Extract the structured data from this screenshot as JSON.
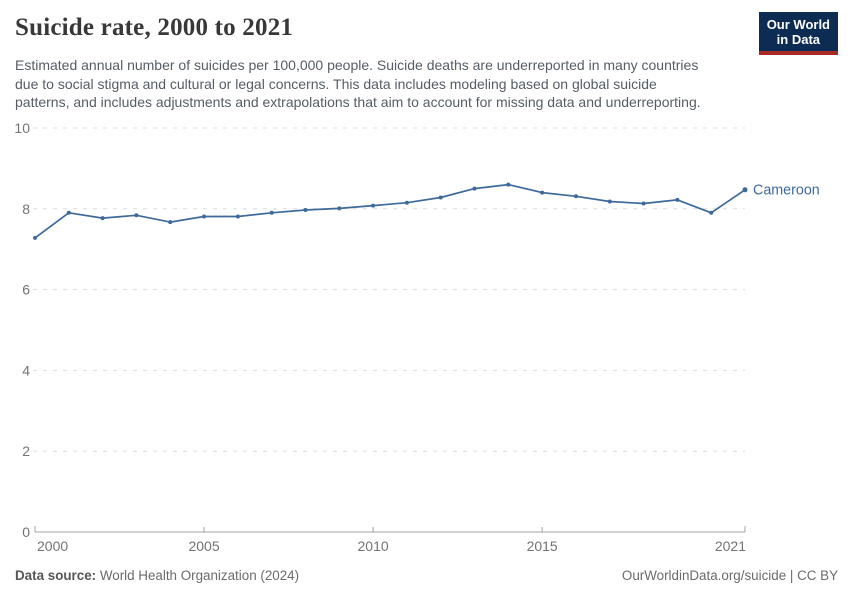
{
  "header": {
    "title": "Suicide rate, 2000 to 2021",
    "subtitle_lines": [
      "Estimated annual number of suicides per 100,000 people. Suicide deaths are underreported in many countries",
      "due to social stigma and cultural or legal concerns. This data includes modeling based on global suicide",
      "patterns, and includes adjustments and extrapolations that aim to account for missing data and underreporting."
    ],
    "logo": {
      "line1": "Our World",
      "line2": "in Data"
    }
  },
  "chart_data": {
    "type": "line",
    "title": "Suicide rate, 2000 to 2021",
    "xlabel": "",
    "ylabel": "",
    "xlim": [
      2000,
      2021
    ],
    "ylim": [
      0,
      10
    ],
    "x_ticks": [
      2000,
      2005,
      2010,
      2015,
      2021
    ],
    "x_tick_labels": [
      "2000",
      "2005",
      "2010",
      "2015",
      "2021"
    ],
    "y_ticks": [
      0,
      2,
      4,
      6,
      8,
      10
    ],
    "y_tick_labels": [
      "0",
      "2",
      "4",
      "6",
      "8",
      "10"
    ],
    "grid": "horizontal-dashed",
    "legend_position": "end-of-line-label",
    "markers": true,
    "x": [
      2000,
      2001,
      2002,
      2003,
      2004,
      2005,
      2006,
      2007,
      2008,
      2009,
      2010,
      2011,
      2012,
      2013,
      2014,
      2015,
      2016,
      2017,
      2018,
      2019,
      2020,
      2021
    ],
    "series": [
      {
        "name": "Cameroon",
        "color": "#3d6a9c",
        "values": [
          7.28,
          7.9,
          7.77,
          7.84,
          7.67,
          7.81,
          7.81,
          7.9,
          7.97,
          8.01,
          8.08,
          8.15,
          8.28,
          8.5,
          8.6,
          8.4,
          8.31,
          8.18,
          8.13,
          8.22,
          7.9,
          8.47
        ]
      }
    ]
  },
  "colors": {
    "line": "#3d6a9c",
    "grid": "#dcdcdc",
    "axis": "#a3a3a3",
    "tick_label": "#737373",
    "title": "#383838",
    "subtitle": "#555d66",
    "logo_bg": "#0d2c54",
    "logo_accent": "#a62b25"
  },
  "footer": {
    "datasource_label": "Data source:",
    "datasource_value": " World Health Organization (2024)",
    "right_text": "OurWorldinData.org/suicide | CC BY"
  }
}
